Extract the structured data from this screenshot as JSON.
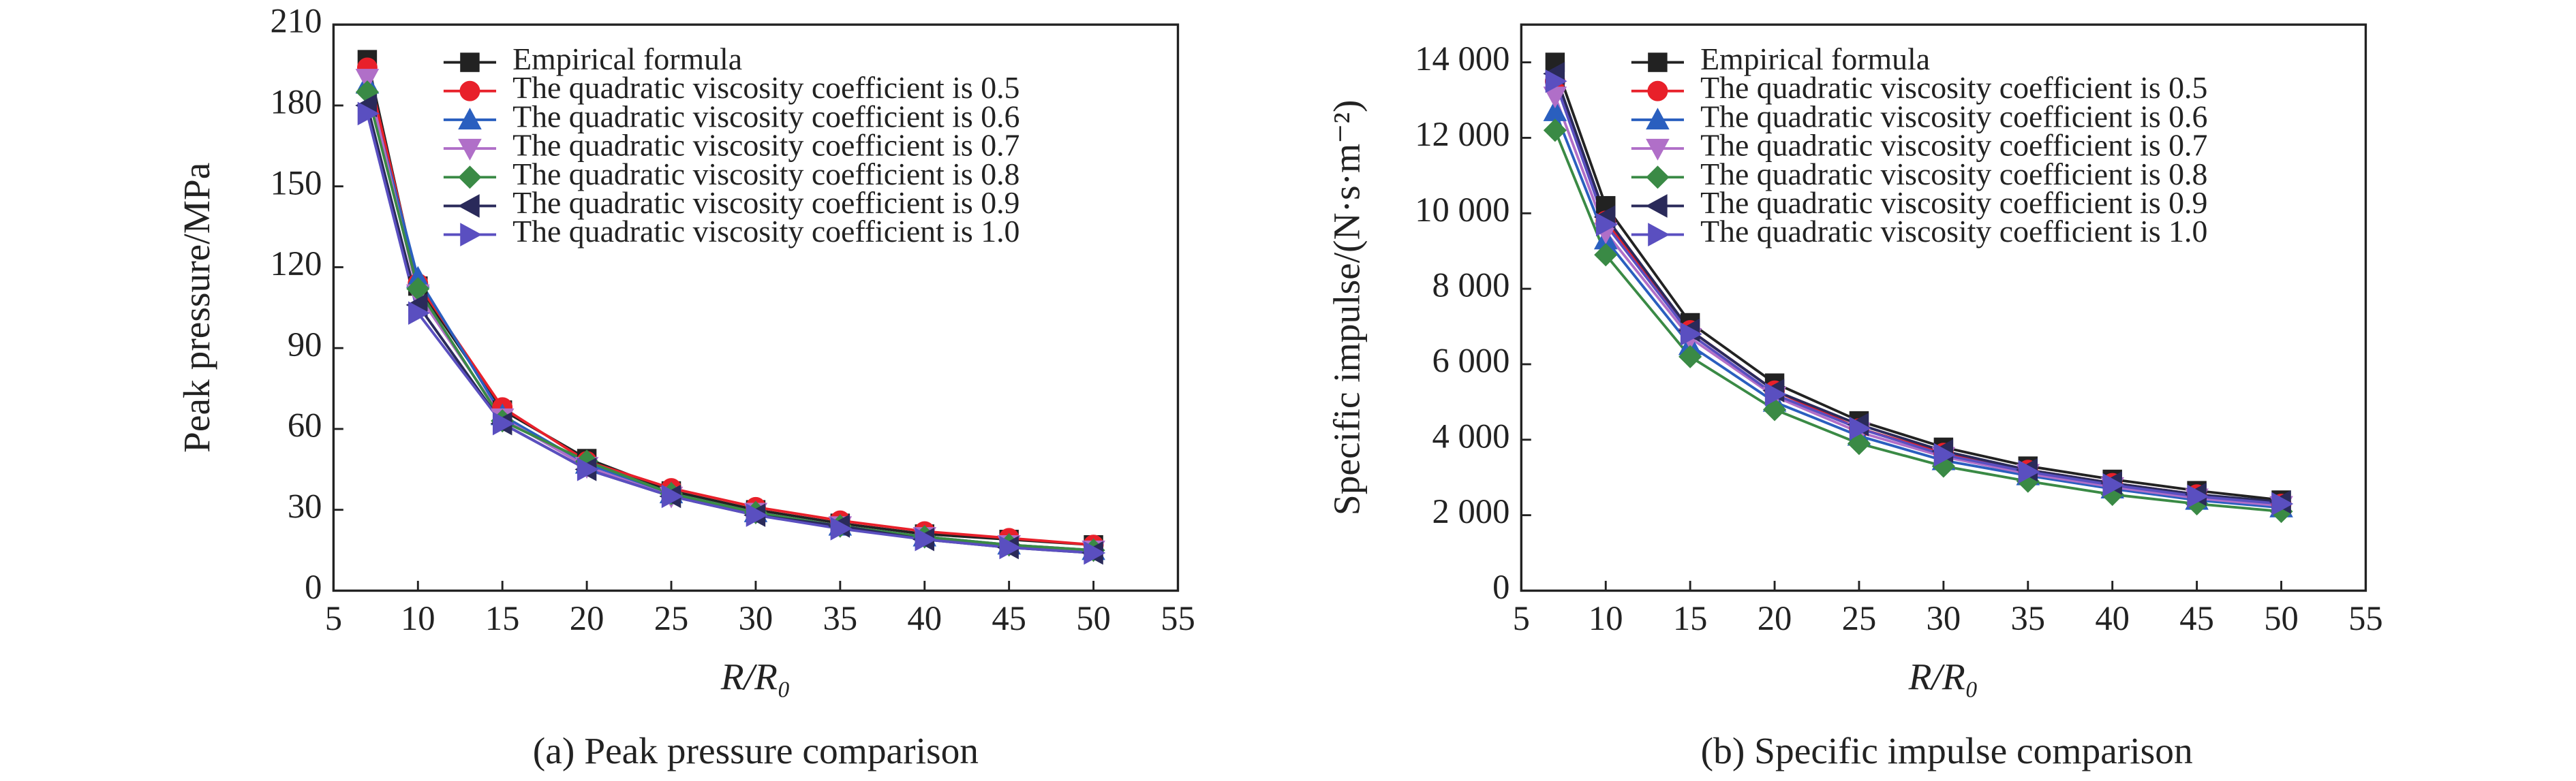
{
  "chart_data": [
    {
      "type": "line",
      "caption": "(a) Peak pressure comparison",
      "xlabel": "R/R₀",
      "ylabel": "Peak pressure/MPa",
      "x": [
        7,
        10,
        15,
        20,
        25,
        30,
        35,
        40,
        45,
        50
      ],
      "xlim": [
        5,
        55
      ],
      "xticks": [
        5,
        10,
        15,
        20,
        25,
        30,
        35,
        40,
        45,
        50,
        55
      ],
      "ylim": [
        0,
        210
      ],
      "yticks": [
        0,
        30,
        60,
        90,
        120,
        150,
        180,
        210
      ],
      "legend": "upper right",
      "series": [
        {
          "name": "Empirical formula",
          "color": "#222222",
          "marker": "square",
          "values": [
            197,
            113,
            67,
            49,
            37,
            30,
            25,
            21,
            19,
            17
          ]
        },
        {
          "name": "The quadratic viscosity coefficient is 0.5",
          "color": "#e8202a",
          "marker": "circle",
          "values": [
            194,
            114,
            68,
            48,
            38,
            31,
            26,
            22,
            19.5,
            17
          ]
        },
        {
          "name": "The quadratic viscosity coefficient is 0.6",
          "color": "#2a5fbf",
          "marker": "triangle-up",
          "values": [
            188,
            116,
            65,
            47,
            36,
            29,
            24,
            20,
            17,
            15
          ]
        },
        {
          "name": "The quadratic viscosity coefficient is 0.7",
          "color": "#b06fc8",
          "marker": "triangle-down",
          "values": [
            190,
            110,
            64,
            46,
            35,
            29,
            24,
            20,
            17,
            15
          ]
        },
        {
          "name": "The quadratic viscosity coefficient is 0.8",
          "color": "#3a8a45",
          "marker": "diamond",
          "values": [
            185,
            112,
            63,
            48,
            36,
            29,
            24,
            20,
            17,
            15
          ]
        },
        {
          "name": "The quadratic viscosity coefficient is 0.9",
          "color": "#2a2a5a",
          "marker": "triangle-left",
          "values": [
            180,
            106,
            62,
            45,
            35,
            28,
            24,
            19,
            16,
            14
          ]
        },
        {
          "name": "The quadratic viscosity coefficient is 1.0",
          "color": "#5a4fc0",
          "marker": "triangle-right",
          "values": [
            177,
            103,
            62,
            45,
            35,
            28,
            23,
            19,
            16,
            14
          ]
        }
      ]
    },
    {
      "type": "line",
      "caption": "(b) Specific impulse comparison",
      "xlabel": "R/R₀",
      "ylabel": "Specific impulse/(N·s·m⁻²)",
      "x": [
        7,
        10,
        15,
        20,
        25,
        30,
        35,
        40,
        45,
        50
      ],
      "xlim": [
        5,
        55
      ],
      "xticks": [
        5,
        10,
        15,
        20,
        25,
        30,
        35,
        40,
        45,
        50,
        55
      ],
      "ylim": [
        0,
        15000
      ],
      "yticks": [
        0,
        {
          "value": 2000,
          "label": "2 000"
        },
        {
          "value": 4000,
          "label": "4 000"
        },
        {
          "value": 6000,
          "label": "6 000"
        },
        {
          "value": 8000,
          "label": "8 000"
        },
        {
          "value": 10000,
          "label": "10 000"
        },
        {
          "value": 12000,
          "label": "12 000"
        },
        {
          "value": 14000,
          "label": "14 000"
        }
      ],
      "legend": "upper right",
      "series": [
        {
          "name": "Empirical formula",
          "color": "#222222",
          "marker": "square",
          "values": [
            14000,
            10200,
            7100,
            5500,
            4500,
            3800,
            3300,
            2950,
            2650,
            2400
          ]
        },
        {
          "name": "The quadratic viscosity coefficient is 0.5",
          "color": "#e8202a",
          "marker": "circle",
          "values": [
            13500,
            9800,
            6900,
            5300,
            4300,
            3650,
            3200,
            2850,
            2550,
            2300
          ]
        },
        {
          "name": "The quadratic viscosity coefficient is 0.6",
          "color": "#2a5fbf",
          "marker": "triangle-up",
          "values": [
            12700,
            9300,
            6500,
            5000,
            4100,
            3450,
            3050,
            2700,
            2400,
            2200
          ]
        },
        {
          "name": "The quadratic viscosity coefficient is 0.7",
          "color": "#b06fc8",
          "marker": "triangle-down",
          "values": [
            13100,
            9500,
            6700,
            5150,
            4200,
            3550,
            3100,
            2750,
            2450,
            2250
          ]
        },
        {
          "name": "The quadratic viscosity coefficient is 0.8",
          "color": "#3a8a45",
          "marker": "diamond",
          "values": [
            12200,
            8900,
            6200,
            4800,
            3900,
            3300,
            2900,
            2550,
            2300,
            2100
          ]
        },
        {
          "name": "The quadratic viscosity coefficient is 0.9",
          "color": "#2a2a5a",
          "marker": "triangle-left",
          "values": [
            13700,
            9900,
            6900,
            5300,
            4400,
            3700,
            3200,
            2850,
            2550,
            2350
          ]
        },
        {
          "name": "The quadratic viscosity coefficient is 1.0",
          "color": "#5a4fc0",
          "marker": "triangle-right",
          "values": [
            13500,
            9700,
            6800,
            5200,
            4300,
            3600,
            3150,
            2800,
            2500,
            2300
          ]
        }
      ]
    }
  ]
}
